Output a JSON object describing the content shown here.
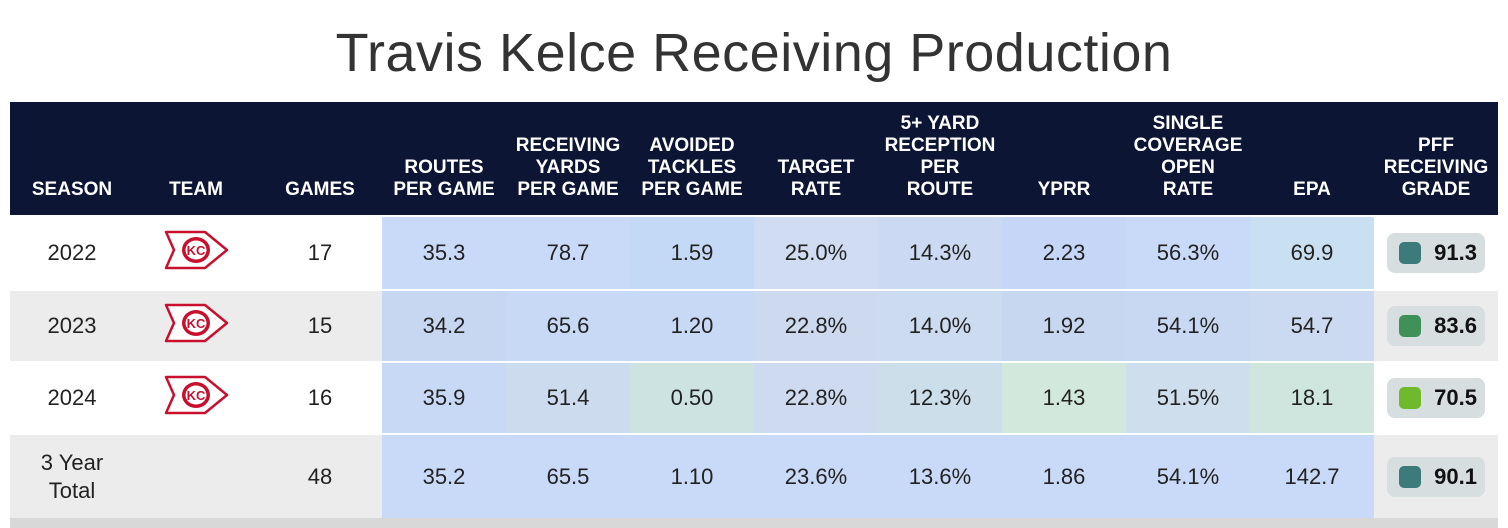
{
  "title": "Travis Kelce Receiving Production",
  "chart_data": {
    "type": "table",
    "title": "Travis Kelce Receiving Production",
    "columns": [
      "SEASON",
      "TEAM",
      "GAMES",
      "ROUTES\nPER GAME",
      "RECEIVING\nYARDS\nPER GAME",
      "AVOIDED\nTACKLES\nPER GAME",
      "TARGET\nRATE",
      "5+ YARD\nRECEPTION\nPER\nROUTE",
      "YPRR",
      "SINGLE\nCOVERAGE\nOPEN\nRATE",
      "EPA",
      "PFF\nRECEIVING\nGRADE"
    ],
    "rows": [
      {
        "season": "2022",
        "team": "KC",
        "games": "17",
        "routes_per_game": "35.3",
        "receiving_yards_per_game": "78.7",
        "avoided_tackles_per_game": "1.59",
        "target_rate": "25.0%",
        "five_plus_yard_reception_per_route": "14.3%",
        "yprr": "2.23",
        "single_coverage_open_rate": "56.3%",
        "epa": "69.9",
        "pff_receiving_grade": "91.3",
        "grade_color": "#3d7a7a",
        "tints": [
          "#c9daf8",
          "#c9daf8",
          "#c3d9f5",
          "#cfdcf2",
          "#cbdaf2",
          "#c6d6f7",
          "#c9daf8",
          "#c9e0f2"
        ]
      },
      {
        "season": "2023",
        "team": "KC",
        "games": "15",
        "routes_per_game": "34.2",
        "receiving_yards_per_game": "65.6",
        "avoided_tackles_per_game": "1.20",
        "target_rate": "22.8%",
        "five_plus_yard_reception_per_route": "14.0%",
        "yprr": "1.92",
        "single_coverage_open_rate": "54.1%",
        "epa": "54.7",
        "pff_receiving_grade": "83.6",
        "grade_color": "#3f9158",
        "tints": [
          "#c8d7f1",
          "#c7d9f5",
          "#c8d9f6",
          "#cdd9ef",
          "#ccdbef",
          "#c8d7f0",
          "#c9d8f2",
          "#cbdaf0"
        ]
      },
      {
        "season": "2024",
        "team": "KC",
        "games": "16",
        "routes_per_game": "35.9",
        "receiving_yards_per_game": "51.4",
        "avoided_tackles_per_game": "0.50",
        "target_rate": "22.8%",
        "five_plus_yard_reception_per_route": "12.3%",
        "yprr": "1.43",
        "single_coverage_open_rate": "51.5%",
        "epa": "18.1",
        "pff_receiving_grade": "70.5",
        "grade_color": "#6fba2c",
        "tints": [
          "#c8d9f6",
          "#ccdcee",
          "#cde3e2",
          "#cddaf0",
          "#cddeeb",
          "#d3e8dc",
          "#cfdeed",
          "#cee6de"
        ]
      },
      {
        "season": "3 Year\nTotal",
        "team": "",
        "games": "48",
        "routes_per_game": "35.2",
        "receiving_yards_per_game": "65.5",
        "avoided_tackles_per_game": "1.10",
        "target_rate": "23.6%",
        "five_plus_yard_reception_per_route": "13.6%",
        "yprr": "1.86",
        "single_coverage_open_rate": "54.1%",
        "epa": "142.7",
        "pff_receiving_grade": "90.1",
        "grade_color": "#3d7a7a",
        "tints": [
          "#c9daf8",
          "#c9daf8",
          "#c9daf8",
          "#c9daf8",
          "#c9daf8",
          "#c9daf8",
          "#c9daf8",
          "#c9daf8"
        ]
      }
    ]
  }
}
